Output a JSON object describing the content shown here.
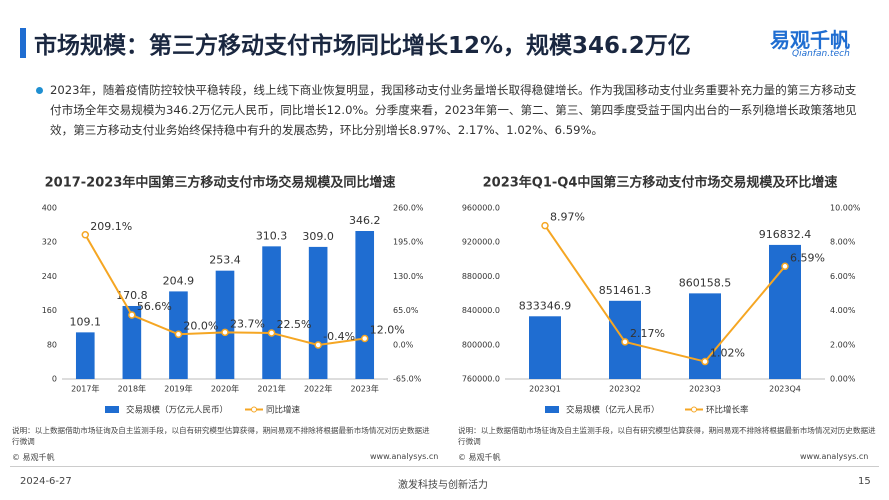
{
  "page": {
    "title": "市场规模：第三方移动支付市场同比增长12%，规模346.2万亿",
    "logo_cn": "易观千帆",
    "logo_en": "Qianfan.tech",
    "paragraph": "2023年，随着疫情防控较快平稳转段，线上线下商业恢复明显，我国移动支付业务量增长取得稳健增长。作为我国移动支付业务重要补充力量的第三方移动支付市场全年交易规模为346.2万亿元人民币，同比增长12.0%。分季度来看，2023年第一、第二、第三、第四季度受益于国内出台的一系列稳增长政策落地见效，第三方移动支付业务始终保持稳中有升的发展态势，环比分别增长8.97%、2.17%、1.02%、6.59%。",
    "footer_date": "2024-6-27",
    "footer_slogan": "激发科技与创新活力",
    "page_number": "15"
  },
  "chart_data": [
    {
      "type": "bar",
      "title": "2017-2023年中国第三方移动支付市场交易规模及同比增速",
      "categories": [
        "2017年",
        "2018年",
        "2019年",
        "2020年",
        "2021年",
        "2022年",
        "2023年"
      ],
      "series": [
        {
          "name": "交易规模（万亿元人民币）",
          "type": "bar",
          "color": "#1f6dd1",
          "values": [
            109.1,
            170.8,
            204.9,
            253.4,
            310.3,
            309.0,
            346.2
          ],
          "value_labels": [
            "109.1",
            "170.8",
            "204.9",
            "253.4",
            "310.3",
            "309.0",
            "346.2"
          ]
        },
        {
          "name": "同比增速",
          "type": "line",
          "axis": "y2",
          "color": "#f5a623",
          "values": [
            209.1,
            56.6,
            20.0,
            23.7,
            22.5,
            -0.4,
            12.0
          ],
          "value_labels": [
            "209.1%",
            "56.6%",
            "20.0%",
            "23.7%",
            "22.5%",
            "-0.4%",
            "12.0%"
          ]
        }
      ],
      "ylim": [
        0,
        400
      ],
      "yticks": [
        0,
        80,
        160,
        240,
        320,
        400
      ],
      "y2lim": [
        -65,
        260
      ],
      "y2ticks": [
        {
          "value": -65,
          "label": "-65.0%"
        },
        {
          "value": 0,
          "label": "0.0%"
        },
        {
          "value": 65,
          "label": "65.0%"
        },
        {
          "value": 130,
          "label": "130.0%"
        },
        {
          "value": 195,
          "label": "195.0%"
        },
        {
          "value": 260,
          "label": "260.0%"
        }
      ],
      "note": "说明：以上数据借助市场征询及自主监测手段，以自有研究模型估算获得，期间易观不排除将根据最新市场情况对历史数据进行微调",
      "source": "© 易观千帆",
      "website": "www.analysys.cn"
    },
    {
      "type": "bar",
      "title": "2023年Q1-Q4中国第三方移动支付市场交易规模及环比增速",
      "categories": [
        "2023Q1",
        "2023Q2",
        "2023Q3",
        "2023Q4"
      ],
      "series": [
        {
          "name": "交易规模（亿元人民币）",
          "type": "bar",
          "color": "#1f6dd1",
          "values": [
            833346.9,
            851461.3,
            860158.5,
            916832.4
          ],
          "value_labels": [
            "833346.9",
            "851461.3",
            "860158.5",
            "916832.4"
          ]
        },
        {
          "name": "环比增长率",
          "type": "line",
          "axis": "y2",
          "color": "#f5a623",
          "values": [
            8.97,
            2.17,
            1.02,
            6.59
          ],
          "value_labels": [
            "8.97%",
            "2.17%",
            "1.02%",
            "6.59%"
          ]
        }
      ],
      "ylim": [
        760000,
        960000
      ],
      "yticks": [
        {
          "value": 760000,
          "label": "760000.0"
        },
        {
          "value": 800000,
          "label": "800000.0"
        },
        {
          "value": 840000,
          "label": "840000.0"
        },
        {
          "value": 880000,
          "label": "880000.0"
        },
        {
          "value": 920000,
          "label": "920000.0"
        },
        {
          "value": 960000,
          "label": "960000.0"
        }
      ],
      "y2lim": [
        0,
        10
      ],
      "y2ticks": [
        {
          "value": 0,
          "label": "0.00%"
        },
        {
          "value": 2,
          "label": "2.00%"
        },
        {
          "value": 4,
          "label": "4.00%"
        },
        {
          "value": 6,
          "label": "6.00%"
        },
        {
          "value": 8,
          "label": "8.00%"
        },
        {
          "value": 10,
          "label": "10.00%"
        }
      ],
      "note": "说明：以上数据借助市场征询及自主监测手段，以自有研究模型估算获得，期间易观不排除将根据最新市场情况对历史数据进行微调",
      "source": "© 易观千帆",
      "website": "www.analysys.cn"
    }
  ]
}
